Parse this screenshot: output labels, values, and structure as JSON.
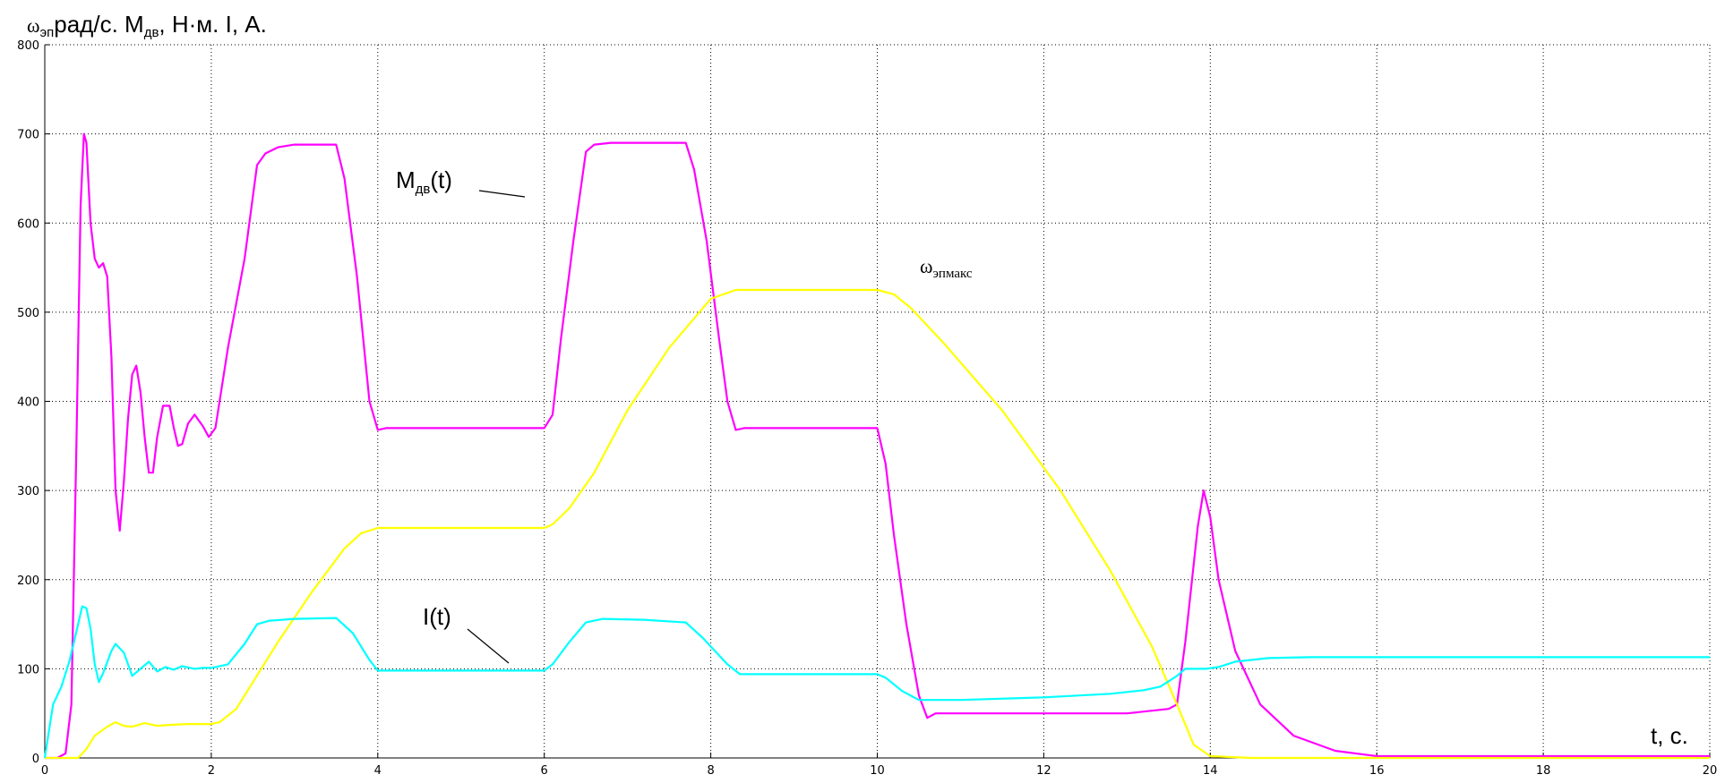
{
  "chart_data": {
    "type": "line",
    "title": "",
    "ylabel": {
      "omega_symbol": "ω",
      "omega_sub": "эп",
      "part1": "рад/с. М",
      "m_sub": "дв",
      "part2": ", Н·м. I, А."
    },
    "xlabel": "t, с.",
    "xlim": [
      0,
      20
    ],
    "ylim": [
      0,
      800
    ],
    "x_ticks": [
      0,
      2,
      4,
      6,
      8,
      10,
      12,
      14,
      16,
      18,
      20
    ],
    "y_ticks": [
      0,
      100,
      200,
      300,
      400,
      500,
      600,
      700,
      800
    ],
    "x_tick_labels": [
      "0",
      "2",
      "4",
      "6",
      "8",
      "10",
      "12",
      "14",
      "16",
      "18",
      "20"
    ],
    "y_tick_labels": [
      "0",
      "100",
      "200",
      "300",
      "400",
      "500",
      "600",
      "700",
      "800"
    ],
    "grid": true,
    "series": [
      {
        "name": "M_дв(t)",
        "color": "#ff00ff",
        "points": [
          [
            0,
            0
          ],
          [
            0.15,
            0
          ],
          [
            0.25,
            5
          ],
          [
            0.32,
            60
          ],
          [
            0.38,
            350
          ],
          [
            0.43,
            620
          ],
          [
            0.47,
            700
          ],
          [
            0.5,
            690
          ],
          [
            0.55,
            600
          ],
          [
            0.6,
            560
          ],
          [
            0.65,
            550
          ],
          [
            0.7,
            555
          ],
          [
            0.75,
            540
          ],
          [
            0.8,
            450
          ],
          [
            0.85,
            300
          ],
          [
            0.9,
            255
          ],
          [
            0.95,
            310
          ],
          [
            1.0,
            380
          ],
          [
            1.05,
            430
          ],
          [
            1.1,
            440
          ],
          [
            1.15,
            410
          ],
          [
            1.2,
            360
          ],
          [
            1.25,
            320
          ],
          [
            1.3,
            320
          ],
          [
            1.35,
            360
          ],
          [
            1.42,
            395
          ],
          [
            1.5,
            395
          ],
          [
            1.55,
            370
          ],
          [
            1.6,
            350
          ],
          [
            1.65,
            352
          ],
          [
            1.72,
            375
          ],
          [
            1.8,
            385
          ],
          [
            1.9,
            372
          ],
          [
            1.97,
            360
          ],
          [
            2.05,
            370
          ],
          [
            2.2,
            460
          ],
          [
            2.4,
            560
          ],
          [
            2.55,
            665
          ],
          [
            2.65,
            678
          ],
          [
            2.8,
            685
          ],
          [
            3.0,
            688
          ],
          [
            3.2,
            688
          ],
          [
            3.5,
            688
          ],
          [
            3.6,
            650
          ],
          [
            3.75,
            540
          ],
          [
            3.9,
            400
          ],
          [
            4.0,
            368
          ],
          [
            4.1,
            370
          ],
          [
            5.0,
            370
          ],
          [
            6.0,
            370
          ],
          [
            6.1,
            385
          ],
          [
            6.2,
            470
          ],
          [
            6.35,
            580
          ],
          [
            6.5,
            680
          ],
          [
            6.6,
            688
          ],
          [
            6.8,
            690
          ],
          [
            7.4,
            690
          ],
          [
            7.7,
            690
          ],
          [
            7.8,
            660
          ],
          [
            7.95,
            580
          ],
          [
            8.1,
            470
          ],
          [
            8.2,
            400
          ],
          [
            8.3,
            368
          ],
          [
            8.4,
            370
          ],
          [
            9.0,
            370
          ],
          [
            9.6,
            370
          ],
          [
            10.0,
            370
          ],
          [
            10.1,
            330
          ],
          [
            10.2,
            250
          ],
          [
            10.35,
            150
          ],
          [
            10.5,
            70
          ],
          [
            10.6,
            45
          ],
          [
            10.7,
            50
          ],
          [
            11.0,
            50
          ],
          [
            12.0,
            50
          ],
          [
            13.0,
            50
          ],
          [
            13.5,
            55
          ],
          [
            13.6,
            60
          ],
          [
            13.7,
            130
          ],
          [
            13.85,
            260
          ],
          [
            13.92,
            300
          ],
          [
            14.0,
            270
          ],
          [
            14.1,
            200
          ],
          [
            14.3,
            120
          ],
          [
            14.6,
            60
          ],
          [
            15.0,
            25
          ],
          [
            15.5,
            8
          ],
          [
            16.0,
            2
          ],
          [
            20.0,
            2
          ]
        ]
      },
      {
        "name": "ω_эпмакс",
        "color": "#ffff00",
        "points": [
          [
            0,
            0
          ],
          [
            0.4,
            0
          ],
          [
            0.5,
            10
          ],
          [
            0.6,
            25
          ],
          [
            0.75,
            35
          ],
          [
            0.85,
            40
          ],
          [
            0.95,
            36
          ],
          [
            1.05,
            35
          ],
          [
            1.2,
            39
          ],
          [
            1.35,
            36
          ],
          [
            1.5,
            37
          ],
          [
            1.7,
            38
          ],
          [
            2.0,
            38
          ],
          [
            2.1,
            40
          ],
          [
            2.3,
            55
          ],
          [
            2.5,
            85
          ],
          [
            2.8,
            130
          ],
          [
            3.2,
            185
          ],
          [
            3.6,
            235
          ],
          [
            3.8,
            252
          ],
          [
            4.0,
            258
          ],
          [
            4.5,
            258
          ],
          [
            5.0,
            258
          ],
          [
            6.0,
            258
          ],
          [
            6.1,
            262
          ],
          [
            6.3,
            280
          ],
          [
            6.6,
            320
          ],
          [
            7.0,
            390
          ],
          [
            7.5,
            460
          ],
          [
            8.0,
            515
          ],
          [
            8.3,
            525
          ],
          [
            9.0,
            525
          ],
          [
            10.0,
            525
          ],
          [
            10.2,
            520
          ],
          [
            10.4,
            505
          ],
          [
            10.8,
            465
          ],
          [
            11.5,
            390
          ],
          [
            12.2,
            300
          ],
          [
            12.8,
            210
          ],
          [
            13.3,
            125
          ],
          [
            13.6,
            60
          ],
          [
            13.8,
            15
          ],
          [
            14.0,
            2
          ],
          [
            14.5,
            0
          ],
          [
            20.0,
            0
          ]
        ]
      },
      {
        "name": "I(t)",
        "color": "#00ffff",
        "points": [
          [
            0,
            0
          ],
          [
            0.05,
            30
          ],
          [
            0.1,
            60
          ],
          [
            0.2,
            80
          ],
          [
            0.3,
            110
          ],
          [
            0.4,
            150
          ],
          [
            0.45,
            170
          ],
          [
            0.5,
            168
          ],
          [
            0.55,
            145
          ],
          [
            0.6,
            105
          ],
          [
            0.65,
            85
          ],
          [
            0.7,
            95
          ],
          [
            0.8,
            120
          ],
          [
            0.85,
            128
          ],
          [
            0.95,
            118
          ],
          [
            1.05,
            92
          ],
          [
            1.15,
            100
          ],
          [
            1.25,
            108
          ],
          [
            1.35,
            97
          ],
          [
            1.45,
            102
          ],
          [
            1.55,
            99
          ],
          [
            1.65,
            103
          ],
          [
            1.8,
            100
          ],
          [
            1.9,
            101
          ],
          [
            2.0,
            101
          ],
          [
            2.2,
            105
          ],
          [
            2.4,
            128
          ],
          [
            2.55,
            150
          ],
          [
            2.7,
            154
          ],
          [
            3.0,
            156
          ],
          [
            3.5,
            157
          ],
          [
            3.7,
            140
          ],
          [
            3.9,
            110
          ],
          [
            4.0,
            98
          ],
          [
            4.5,
            98
          ],
          [
            6.0,
            98
          ],
          [
            6.1,
            105
          ],
          [
            6.3,
            130
          ],
          [
            6.5,
            152
          ],
          [
            6.7,
            156
          ],
          [
            7.2,
            155
          ],
          [
            7.7,
            152
          ],
          [
            7.9,
            135
          ],
          [
            8.2,
            105
          ],
          [
            8.35,
            94
          ],
          [
            9.0,
            94
          ],
          [
            10.0,
            94
          ],
          [
            10.1,
            90
          ],
          [
            10.3,
            75
          ],
          [
            10.5,
            65
          ],
          [
            11.0,
            65
          ],
          [
            12.0,
            68
          ],
          [
            12.8,
            72
          ],
          [
            13.2,
            76
          ],
          [
            13.4,
            80
          ],
          [
            13.6,
            92
          ],
          [
            13.7,
            100
          ],
          [
            13.95,
            100
          ],
          [
            14.1,
            102
          ],
          [
            14.3,
            108
          ],
          [
            14.7,
            112
          ],
          [
            15.2,
            113
          ],
          [
            16.0,
            113
          ],
          [
            20.0,
            113
          ]
        ]
      }
    ],
    "annotations": [
      {
        "base": "М",
        "sub": "дв",
        "tail": "(t)"
      },
      {
        "text": "I(t)"
      },
      {
        "base": "ω",
        "sub": "эпмакс"
      }
    ]
  }
}
